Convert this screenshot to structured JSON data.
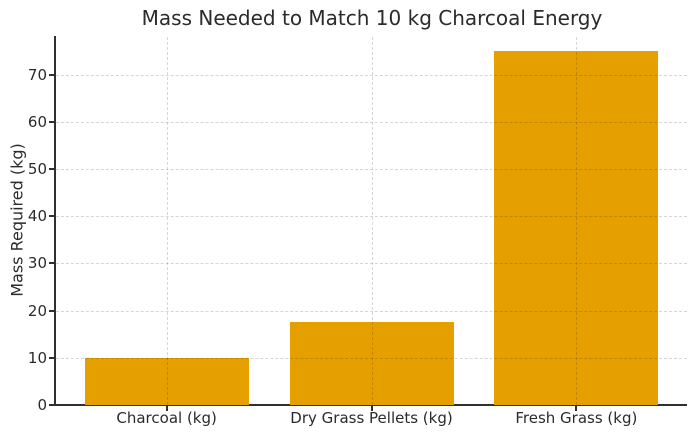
{
  "chart_data": {
    "type": "bar",
    "title": "Mass Needed to Match 10 kg Charcoal Energy",
    "xlabel": "",
    "ylabel": "Mass Required (kg)",
    "categories": [
      "Charcoal (kg)",
      "Dry Grass Pellets (kg)",
      "Fresh Grass (kg)"
    ],
    "values": [
      10,
      17.5,
      75
    ],
    "yticks": [
      0,
      10,
      20,
      30,
      40,
      50,
      60,
      70
    ],
    "ylim": [
      0,
      78
    ],
    "grid": "dashed light-gray, horizontal and vertical, drawn over bars",
    "legend_position": "none",
    "bar_color": "#E5A000",
    "spine_color": "#303030",
    "text_color": "#2B2B2B",
    "background_color": "#FFFFFF"
  }
}
